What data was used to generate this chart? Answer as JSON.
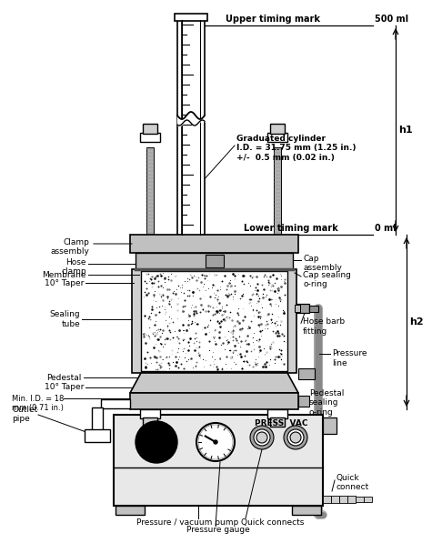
{
  "bg_color": "#ffffff",
  "annotations": {
    "upper_timing_mark": "Upper timing mark",
    "lower_timing_mark": "Lower timing mark",
    "vol_500": "500 ml",
    "vol_0": "0 ml",
    "h1": "h1",
    "h2": "h2",
    "grad_cylinder": "Graduated cylinder\nI.D. = 31.75 mm (1.25 in.)\n+/-  0.5 mm (0.02 in.)",
    "clamp_assembly": "Clamp\nassembly",
    "hose_clamp": "Hose\nclamp",
    "membrane": "Membrane",
    "taper1": "10° Taper",
    "sealing_tube": "Sealing\ntube",
    "pedestal": "Pedestal",
    "taper2": "10° Taper",
    "min_id": "Min. I.D. = 18\nmm (0.71 in.)",
    "outlet_pipe": "Outlet\npipe",
    "cap_assembly": "Cap\nassembly",
    "cap_sealing": "Cap sealing\no-ring",
    "hose_barb": "Hose barb\nfitting",
    "pressure_line": "Pressure\nline",
    "pedestal_sealing": "Pedestal\nsealing\no-ring",
    "quick_connect_right": "Quick\nconnect",
    "press_vac": "PRESS  VAC",
    "quick_connects": "Quick connects",
    "pressure_gauge": "Pressure gauge",
    "pressure_pump": "Pressure / vacuum pump"
  }
}
